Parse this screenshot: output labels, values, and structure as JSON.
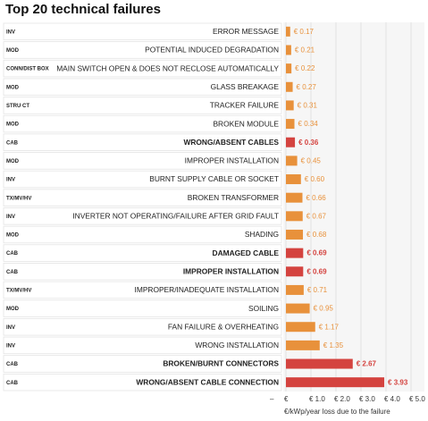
{
  "chart_data": {
    "type": "bar",
    "orientation": "horizontal",
    "title": "Top 20 technical failures",
    "categories": [
      "ERROR MESSAGE",
      "POTENTIAL INDUCED DEGRADATION",
      "MAIN SWITCH OPEN & DOES NOT RECLOSE AUTOMATICALLY",
      "GLASS BREAKAGE",
      "TRACKER FAILURE",
      "BROKEN MODULE",
      "WRONG/ABSENT CABLES",
      "IMPROPER INSTALLATION",
      "BURNT SUPPLY CABLE OR SOCKET",
      "BROKEN TRANSFORMER",
      "INVERTER NOT OPERATING/FAILURE AFTER GRID FAULT",
      "SHADING",
      "DAMAGED CABLE",
      "IMPROPER INSTALLATION",
      "IMPROPER/INADEQUATE INSTALLATION",
      "SOILING",
      "FAN FAILURE & OVERHEATING",
      "WRONG INSTALLATION",
      "BROKEN/BURNT CONNECTORS",
      "WRONG/ABSENT CABLE CONNECTION"
    ],
    "codes": [
      "INV",
      "MOD",
      "CONN/DIST BOX",
      "MOD",
      "STRU CT",
      "MOD",
      "CAB",
      "MOD",
      "INV",
      "TX/MV/HV",
      "INV",
      "MOD",
      "CAB",
      "CAB",
      "TX/MV/HV",
      "MOD",
      "INV",
      "INV",
      "CAB",
      "CAB"
    ],
    "values": [
      0.17,
      0.21,
      0.22,
      0.27,
      0.31,
      0.34,
      0.36,
      0.45,
      0.6,
      0.66,
      0.67,
      0.68,
      0.69,
      0.69,
      0.71,
      0.95,
      1.17,
      1.35,
      2.67,
      3.93
    ],
    "value_labels": [
      "€ 0.17",
      "€ 0.21",
      "€ 0.22",
      "€ 0.27",
      "€ 0.31",
      "€ 0.34",
      "€ 0.36",
      "€ 0.45",
      "€ 0.60",
      "€ 0.66",
      "€ 0.67",
      "€ 0.68",
      "€ 0.69",
      "€ 0.69",
      "€ 0.71",
      "€ 0.95",
      "€ 1.17",
      "€ 1.35",
      "€ 2.67",
      "€ 3.93"
    ],
    "highlight": [
      false,
      false,
      false,
      false,
      false,
      false,
      true,
      false,
      false,
      false,
      false,
      false,
      true,
      true,
      false,
      false,
      false,
      false,
      true,
      true
    ],
    "color": "#e8913b",
    "highlight_color": "#d4433f",
    "xlim": [
      0,
      5
    ],
    "xticks": [
      {
        "value": 0,
        "label": "€"
      },
      {
        "value": 1,
        "label": "€ 1.0"
      },
      {
        "value": 2,
        "label": "€ 2.0"
      },
      {
        "value": 3,
        "label": "€ 3.0"
      },
      {
        "value": 4,
        "label": "€ 4.0"
      },
      {
        "value": 5,
        "label": "€ 5.0"
      }
    ],
    "x_axis_lead": "–",
    "xlabel": "€/kWp/year loss due to the failure",
    "grid": true
  }
}
